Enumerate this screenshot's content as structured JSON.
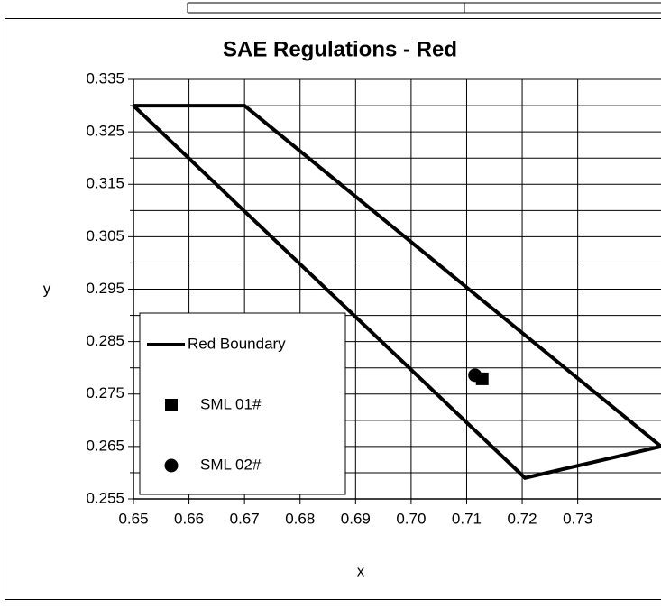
{
  "chart_data": {
    "type": "scatter",
    "title": "SAE Regulations - Red",
    "x_label": "x",
    "y_label": "y",
    "xlim": [
      0.65,
      0.745
    ],
    "ylim": [
      0.255,
      0.335
    ],
    "xticks": [
      0.65,
      0.66,
      0.67,
      0.68,
      0.69,
      {
        "value": 0.7,
        "label": "0.70"
      },
      0.71,
      0.72,
      0.73
    ],
    "yticks": [
      0.255,
      0.265,
      0.275,
      0.285,
      0.295,
      0.305,
      0.315,
      0.325,
      0.335
    ],
    "y_minor_grid": [
      0.26,
      0.27,
      0.28,
      0.29,
      0.3,
      0.31,
      0.32,
      0.33
    ],
    "grid": true,
    "legend": "lower left",
    "series": [
      {
        "name": "Red Boundary",
        "kind": "line",
        "color": "#000000",
        "x": [
          0.65,
          0.67,
          0.745,
          0.7205,
          0.65
        ],
        "values": [
          0.33,
          0.33,
          0.265,
          0.259,
          0.33
        ]
      },
      {
        "name": "SML 01#",
        "kind": "square",
        "color": "#000000",
        "x": [
          0.7128
        ],
        "values": [
          0.2779
        ]
      },
      {
        "name": "SML 02#",
        "kind": "circle",
        "color": "#000000",
        "x": [
          0.7115
        ],
        "values": [
          0.2786
        ]
      }
    ]
  }
}
